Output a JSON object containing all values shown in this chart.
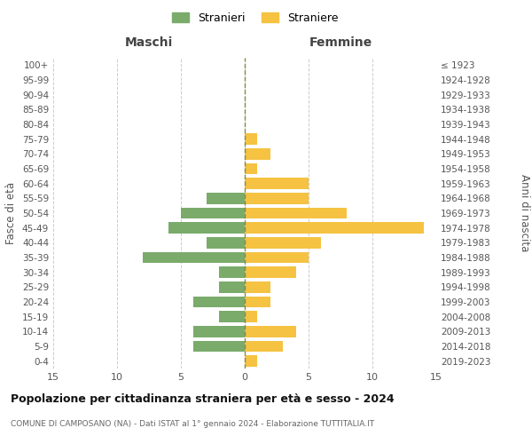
{
  "age_groups": [
    "0-4",
    "5-9",
    "10-14",
    "15-19",
    "20-24",
    "25-29",
    "30-34",
    "35-39",
    "40-44",
    "45-49",
    "50-54",
    "55-59",
    "60-64",
    "65-69",
    "70-74",
    "75-79",
    "80-84",
    "85-89",
    "90-94",
    "95-99",
    "100+"
  ],
  "birth_years": [
    "2019-2023",
    "2014-2018",
    "2009-2013",
    "2004-2008",
    "1999-2003",
    "1994-1998",
    "1989-1993",
    "1984-1988",
    "1979-1983",
    "1974-1978",
    "1969-1973",
    "1964-1968",
    "1959-1963",
    "1954-1958",
    "1949-1953",
    "1944-1948",
    "1939-1943",
    "1934-1938",
    "1929-1933",
    "1924-1928",
    "≤ 1923"
  ],
  "males": [
    0,
    4,
    4,
    2,
    4,
    2,
    2,
    8,
    3,
    6,
    5,
    3,
    0,
    0,
    0,
    0,
    0,
    0,
    0,
    0,
    0
  ],
  "females": [
    1,
    3,
    4,
    1,
    2,
    2,
    4,
    5,
    6,
    14,
    8,
    5,
    5,
    1,
    2,
    1,
    0,
    0,
    0,
    0,
    0
  ],
  "male_color": "#7aab6b",
  "female_color": "#f5c242",
  "background_color": "#ffffff",
  "grid_color": "#cccccc",
  "center_line_color": "#888844",
  "title": "Popolazione per cittadinanza straniera per età e sesso - 2024",
  "subtitle": "COMUNE DI CAMPOSANO (NA) - Dati ISTAT al 1° gennaio 2024 - Elaborazione TUTTITALIA.IT",
  "xlabel_left": "Maschi",
  "xlabel_right": "Femmine",
  "ylabel_left": "Fasce di età",
  "ylabel_right": "Anni di nascita",
  "legend_stranieri": "Stranieri",
  "legend_straniere": "Straniere",
  "xlim": 15
}
